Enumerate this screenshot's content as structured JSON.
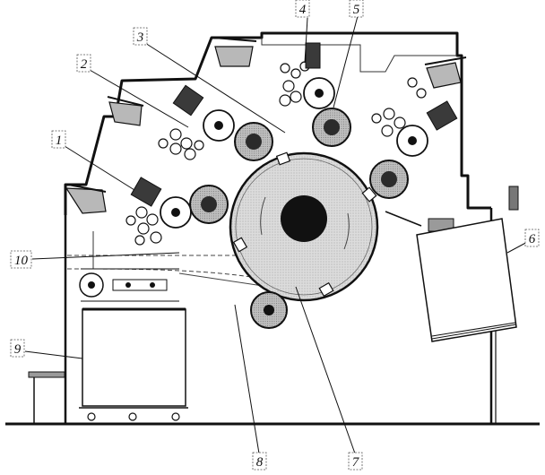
{
  "diagram": {
    "labels": [
      {
        "id": "callout-1",
        "text": "1"
      },
      {
        "id": "callout-2",
        "text": "2"
      },
      {
        "id": "callout-3",
        "text": "3"
      },
      {
        "id": "callout-4",
        "text": "4"
      },
      {
        "id": "callout-5",
        "text": "5"
      },
      {
        "id": "callout-6",
        "text": "6"
      },
      {
        "id": "callout-7",
        "text": "7"
      },
      {
        "id": "callout-8",
        "text": "8"
      },
      {
        "id": "callout-9",
        "text": "9"
      },
      {
        "id": "callout-10",
        "text": "10"
      }
    ],
    "colors": {
      "line": "#1a1a1a",
      "cylinder_fill": "#d9d9d9",
      "roller_dark": "#2b2b2b",
      "inking_unit_fill": "#8c8c8c",
      "background": "#ffffff"
    }
  }
}
